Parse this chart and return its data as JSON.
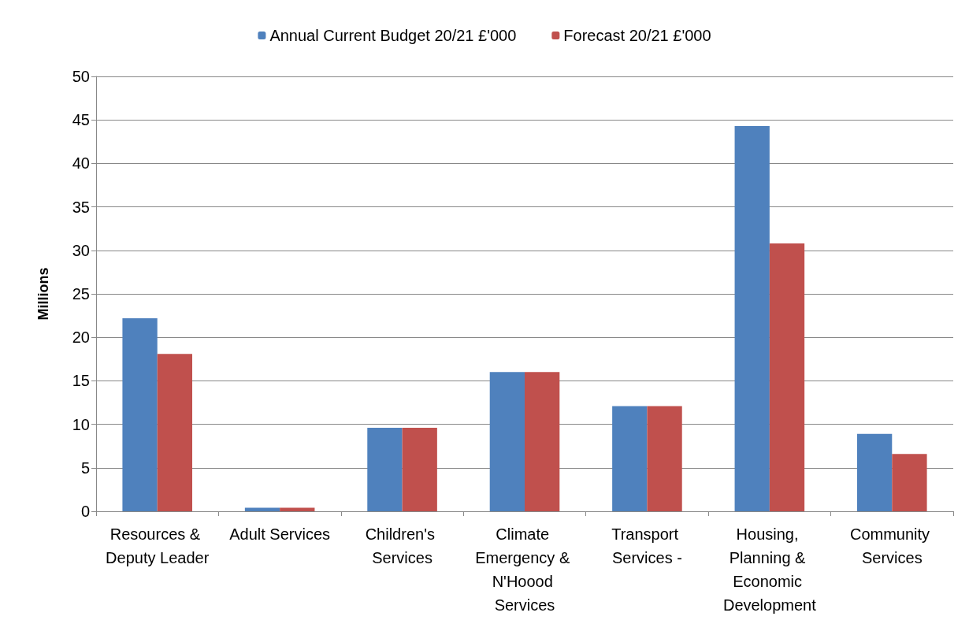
{
  "chart_data": {
    "type": "bar",
    "ylabel": "Millions",
    "categories": [
      "Resources & Deputy Leader",
      "Adult Services",
      "Children's Services",
      "Climate Emergency & N'Hoood Services",
      "Transport Services -",
      "Housing, Planning & Economic Development",
      "Community Services"
    ],
    "series": [
      {
        "name": "Annual Current Budget 20/21 £'000",
        "color": "#4f81bd",
        "values": [
          22.2,
          0.4,
          9.6,
          16.0,
          12.1,
          44.3,
          8.9
        ]
      },
      {
        "name": "Forecast 20/21 £'000",
        "color": "#c0504d",
        "values": [
          18.1,
          0.4,
          9.6,
          16.0,
          12.1,
          30.8,
          6.6
        ]
      }
    ],
    "ylim": [
      0,
      50
    ],
    "yticks": [
      0,
      5,
      10,
      15,
      20,
      25,
      30,
      35,
      40,
      45,
      50
    ],
    "grid": "y",
    "legend": "top"
  }
}
